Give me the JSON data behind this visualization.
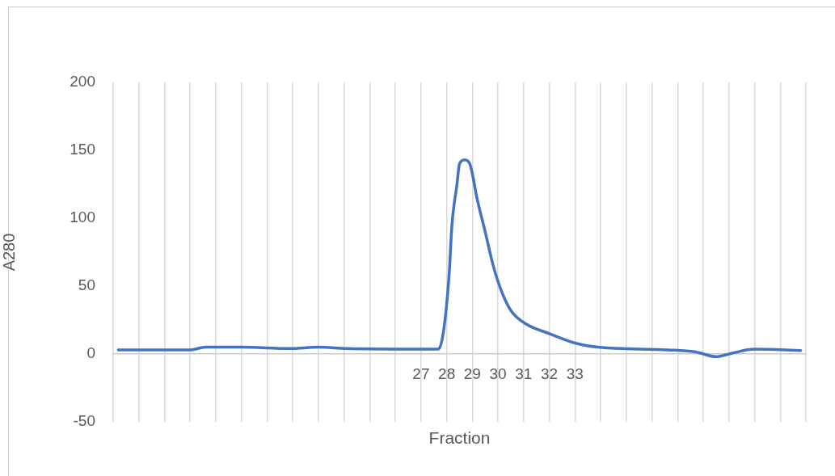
{
  "chart_data": {
    "type": "line",
    "xlabel": "Fraction",
    "ylabel": "A280",
    "x": [
      15.2,
      18.0,
      18.6,
      20.0,
      21.9,
      23.0,
      24.1,
      27.6,
      27.7,
      27.9,
      28.1,
      28.2,
      28.4,
      28.5,
      28.7,
      28.9,
      29.2,
      29.5,
      29.8,
      30.1,
      30.5,
      31.1,
      32.0,
      33.0,
      33.9,
      36.6,
      37.7,
      38.5,
      39.1,
      40.0,
      41.8
    ],
    "values": [
      3,
      3,
      5,
      5,
      4,
      5,
      4,
      3.5,
      4,
      20,
      60,
      94,
      125,
      140,
      143,
      140,
      113,
      90,
      66,
      48,
      32,
      22,
      15,
      8,
      5,
      3,
      1.5,
      -2,
      0.5,
      3.5,
      2.5
    ],
    "color": "#4472c4",
    "marker": "none",
    "xlim": [
      15,
      42
    ],
    "xticks": [
      {
        "value": 15,
        "label": null
      },
      {
        "value": 16,
        "label": null
      },
      {
        "value": 17,
        "label": null
      },
      {
        "value": 18,
        "label": null
      },
      {
        "value": 19,
        "label": null
      },
      {
        "value": 20,
        "label": null
      },
      {
        "value": 21,
        "label": null
      },
      {
        "value": 22,
        "label": null
      },
      {
        "value": 23,
        "label": null
      },
      {
        "value": 24,
        "label": null
      },
      {
        "value": 25,
        "label": null
      },
      {
        "value": 26,
        "label": null
      },
      27,
      28,
      29,
      30,
      31,
      32,
      33,
      {
        "value": 34,
        "label": null
      },
      {
        "value": 35,
        "label": null
      },
      {
        "value": 36,
        "label": null
      },
      {
        "value": 37,
        "label": null
      },
      {
        "value": 38,
        "label": null
      },
      {
        "value": 39,
        "label": null
      },
      {
        "value": 40,
        "label": null
      },
      {
        "value": 41,
        "label": null
      },
      {
        "value": 42,
        "label": null
      }
    ],
    "ylim": [
      -50,
      200
    ],
    "yticks": [
      -50,
      0,
      50,
      100,
      150,
      200
    ],
    "grid": "x"
  }
}
